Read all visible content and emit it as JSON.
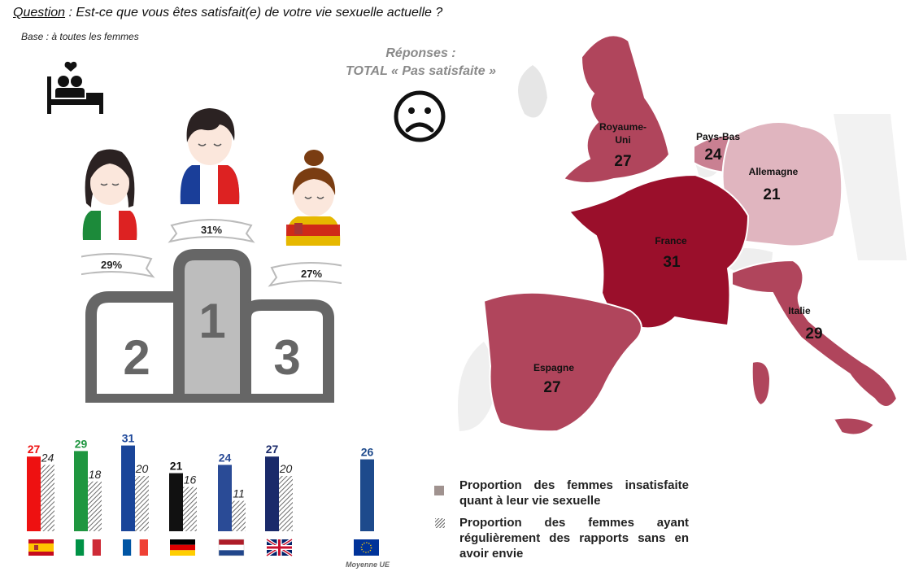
{
  "header": {
    "question_label": "Question",
    "question_text": " : Est-ce que vous êtes satisfait(e) de votre vie sexuelle actuelle ?",
    "base": "Base :  à toutes les femmes",
    "responses_line1": "Réponses :",
    "responses_line2": "TOTAL « Pas satisfaite »"
  },
  "icons": [
    "bed-couple-icon",
    "sad-face-icon"
  ],
  "podium": {
    "first": {
      "rank": "1",
      "label": "31%",
      "country": "France"
    },
    "second": {
      "rank": "2",
      "label": "29%",
      "country": "Italie"
    },
    "third": {
      "rank": "3",
      "label": "27%",
      "country": "Espagne"
    }
  },
  "map": {
    "countries": [
      {
        "name": "Royaume-Uni",
        "label_line1": "Royaume-",
        "label_line2": "Uni",
        "value": "27",
        "color": "#b0455c"
      },
      {
        "name": "Pays-Bas",
        "label_line1": "Pays-Bas",
        "value": "24",
        "color": "#c98092"
      },
      {
        "name": "Allemagne",
        "label_line1": "Allemagne",
        "value": "21",
        "color": "#e0b5bf"
      },
      {
        "name": "France",
        "label_line1": "France",
        "value": "31",
        "color": "#9a0f2b"
      },
      {
        "name": "Italie",
        "label_line1": "Italie",
        "value": "29",
        "color": "#b0455c"
      },
      {
        "name": "Espagne",
        "label_line1": "Espagne",
        "value": "27",
        "color": "#b0455c"
      }
    ]
  },
  "chart_data": {
    "type": "bar",
    "categories": [
      "Espagne",
      "Italie",
      "France",
      "Allemagne",
      "Pays-Bas",
      "Royaume-Uni",
      "Moyenne UE"
    ],
    "series": [
      {
        "name": "Proportion des femmes insatisfaite quant à leur vie sexuelle",
        "values": [
          27,
          29,
          31,
          21,
          24,
          27,
          26
        ]
      },
      {
        "name": "Proportion des femmes ayant régulièrement des rapports sans en avoir envie",
        "values": [
          24,
          18,
          20,
          16,
          11,
          20,
          null
        ]
      }
    ],
    "bar_colors": [
      "#ee1111",
      "#1f9640",
      "#1a4599",
      "#111111",
      "#2a4b96",
      "#1a2a6a",
      "#1d4a8c"
    ],
    "label_colors": [
      "#ee1111",
      "#1f9640",
      "#1a4599",
      "#111111",
      "#2a4b96",
      "#1a2a6a",
      "#1d4a8c"
    ],
    "average_label": "Moyenne UE",
    "ylim": [
      0,
      31
    ],
    "legend": {
      "item1": "Proportion des femmes insatisfaite quant à leur vie sexuelle",
      "item2": "Proportion des femmes ayant régulièrement des rapports sans en avoir envie"
    }
  }
}
